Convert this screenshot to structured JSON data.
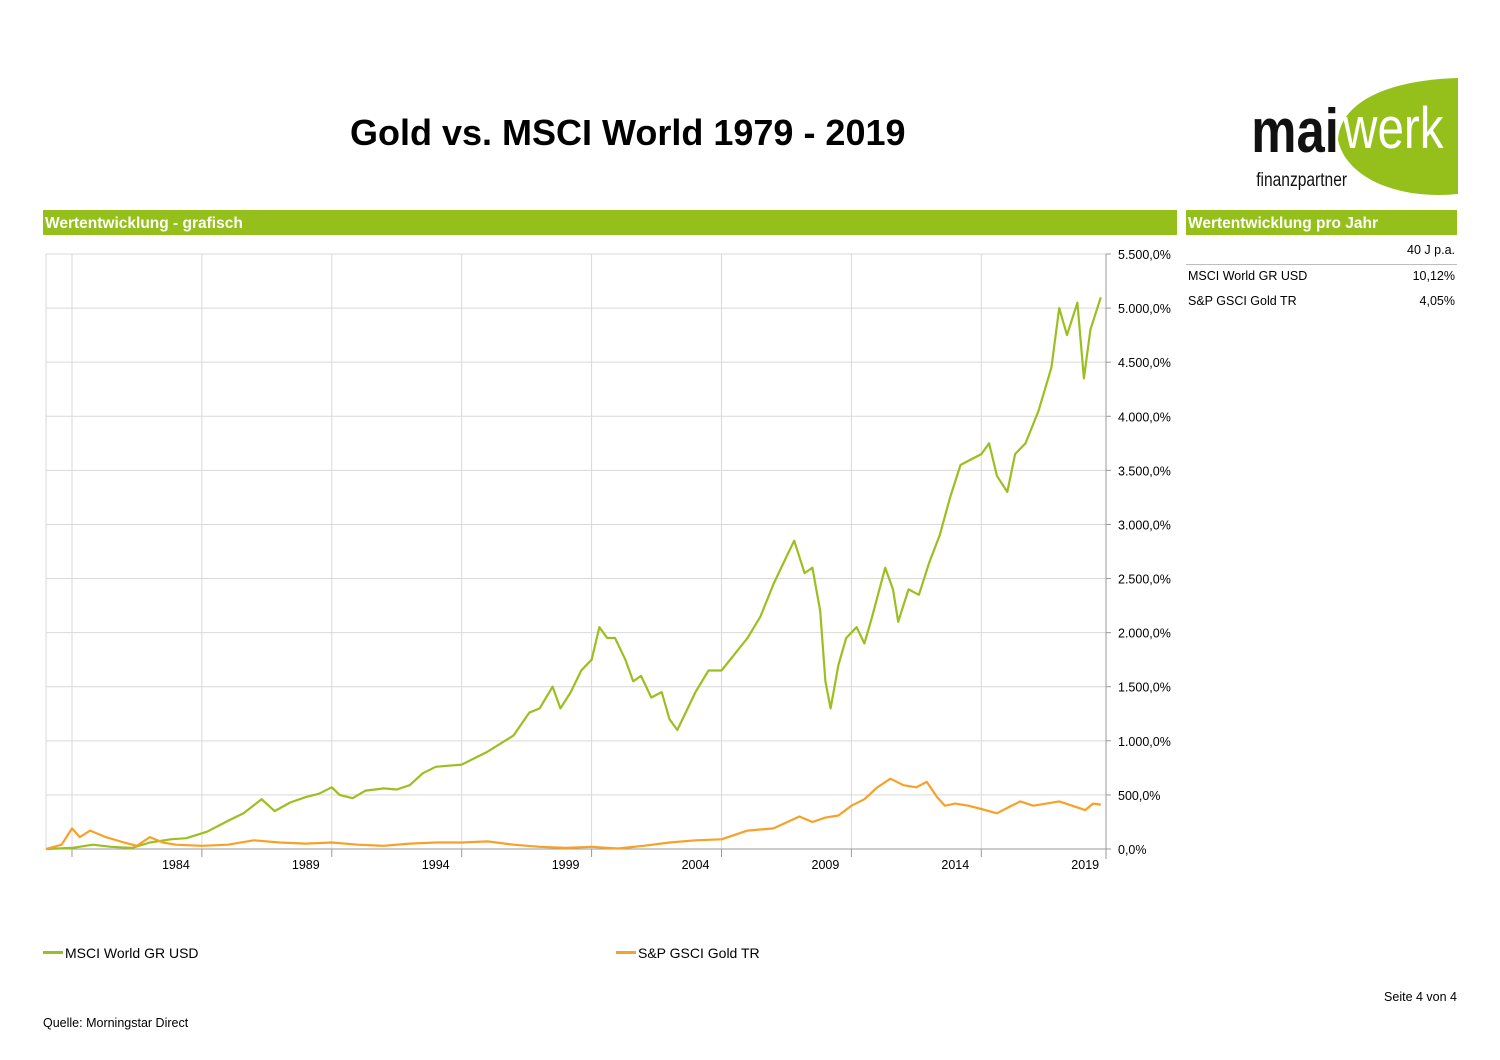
{
  "page": {
    "title": "Gold vs. MSCI World 1979 - 2019",
    "left_bar_label": "Wertentwicklung - grafisch",
    "right_bar_label": "Wertentwicklung pro Jahr",
    "source": "Quelle: Morningstar Direct",
    "page_number": "Seite 4 von 4"
  },
  "logo": {
    "mai": "mai",
    "werk": "werk",
    "tagline": "finanzpartner"
  },
  "performance_table": {
    "column_header": "40 J p.a.",
    "rows": [
      {
        "name": "MSCI World GR USD",
        "value": "10,12%"
      },
      {
        "name": "S&P GSCI Gold TR",
        "value": "4,05%"
      }
    ]
  },
  "colors": {
    "accent_green": "#95bf1a",
    "msci": "#9cbf20",
    "gold": "#f7a128",
    "grid": "#d9d9d9"
  },
  "chart_data": {
    "type": "line",
    "title": "",
    "xlabel": "",
    "ylabel": "",
    "xlim": [
      1979.0,
      2019.8
    ],
    "ylim": [
      0,
      5500
    ],
    "x_ticks": [
      1984,
      1989,
      1994,
      1999,
      2004,
      2009,
      2014,
      2019
    ],
    "y_tick_labels": [
      "0,0%",
      "500,0%",
      "1.000,0%",
      "1.500,0%",
      "2.000,0%",
      "2.500,0%",
      "3.000,0%",
      "3.500,0%",
      "4.000,0%",
      "4.500,0%",
      "5.000,0%",
      "5.500,0%"
    ],
    "y_ticks": [
      0,
      500,
      1000,
      1500,
      2000,
      2500,
      3000,
      3500,
      4000,
      4500,
      5000,
      5500
    ],
    "grid": true,
    "legend_position": "bottom",
    "series": [
      {
        "name": "MSCI World GR USD",
        "color": "#9cbf20",
        "points": [
          [
            1979.0,
            0
          ],
          [
            1980.0,
            10
          ],
          [
            1980.8,
            40
          ],
          [
            1981.5,
            20
          ],
          [
            1982.3,
            10
          ],
          [
            1983.0,
            60
          ],
          [
            1983.8,
            90
          ],
          [
            1984.4,
            100
          ],
          [
            1985.2,
            160
          ],
          [
            1986.0,
            260
          ],
          [
            1986.6,
            330
          ],
          [
            1987.3,
            460
          ],
          [
            1987.8,
            350
          ],
          [
            1988.4,
            430
          ],
          [
            1989.0,
            480
          ],
          [
            1989.5,
            510
          ],
          [
            1990.0,
            570
          ],
          [
            1990.3,
            500
          ],
          [
            1990.8,
            470
          ],
          [
            1991.3,
            540
          ],
          [
            1992.0,
            560
          ],
          [
            1992.5,
            550
          ],
          [
            1993.0,
            590
          ],
          [
            1993.5,
            700
          ],
          [
            1994.0,
            760
          ],
          [
            1994.5,
            770
          ],
          [
            1995.0,
            780
          ],
          [
            1996.0,
            900
          ],
          [
            1997.0,
            1050
          ],
          [
            1997.6,
            1260
          ],
          [
            1998.0,
            1300
          ],
          [
            1998.5,
            1500
          ],
          [
            1998.8,
            1300
          ],
          [
            1999.2,
            1450
          ],
          [
            1999.6,
            1650
          ],
          [
            2000.0,
            1750
          ],
          [
            2000.3,
            2050
          ],
          [
            2000.6,
            1950
          ],
          [
            2000.9,
            1950
          ],
          [
            2001.3,
            1750
          ],
          [
            2001.6,
            1550
          ],
          [
            2001.9,
            1600
          ],
          [
            2002.3,
            1400
          ],
          [
            2002.7,
            1450
          ],
          [
            2003.0,
            1200
          ],
          [
            2003.3,
            1100
          ],
          [
            2003.7,
            1300
          ],
          [
            2004.0,
            1450
          ],
          [
            2004.5,
            1650
          ],
          [
            2005.0,
            1650
          ],
          [
            2005.5,
            1800
          ],
          [
            2006.0,
            1950
          ],
          [
            2006.5,
            2150
          ],
          [
            2007.0,
            2450
          ],
          [
            2007.5,
            2700
          ],
          [
            2007.8,
            2850
          ],
          [
            2008.2,
            2550
          ],
          [
            2008.5,
            2600
          ],
          [
            2008.8,
            2200
          ],
          [
            2009.0,
            1550
          ],
          [
            2009.2,
            1300
          ],
          [
            2009.5,
            1700
          ],
          [
            2009.8,
            1950
          ],
          [
            2010.2,
            2050
          ],
          [
            2010.5,
            1900
          ],
          [
            2010.8,
            2150
          ],
          [
            2011.3,
            2600
          ],
          [
            2011.6,
            2400
          ],
          [
            2011.8,
            2100
          ],
          [
            2012.2,
            2400
          ],
          [
            2012.6,
            2350
          ],
          [
            2013.0,
            2650
          ],
          [
            2013.4,
            2900
          ],
          [
            2013.8,
            3250
          ],
          [
            2014.2,
            3550
          ],
          [
            2014.6,
            3600
          ],
          [
            2015.0,
            3650
          ],
          [
            2015.3,
            3750
          ],
          [
            2015.6,
            3450
          ],
          [
            2016.0,
            3300
          ],
          [
            2016.3,
            3650
          ],
          [
            2016.7,
            3750
          ],
          [
            2017.2,
            4050
          ],
          [
            2017.7,
            4450
          ],
          [
            2018.0,
            5000
          ],
          [
            2018.3,
            4750
          ],
          [
            2018.7,
            5050
          ],
          [
            2018.95,
            4350
          ],
          [
            2019.2,
            4800
          ],
          [
            2019.6,
            5100
          ]
        ]
      },
      {
        "name": "S&P GSCI Gold TR",
        "color": "#f7a128",
        "points": [
          [
            1979.0,
            0
          ],
          [
            1979.6,
            40
          ],
          [
            1980.0,
            190
          ],
          [
            1980.3,
            110
          ],
          [
            1980.7,
            170
          ],
          [
            1981.3,
            110
          ],
          [
            1982.0,
            60
          ],
          [
            1982.5,
            30
          ],
          [
            1983.0,
            110
          ],
          [
            1983.5,
            60
          ],
          [
            1984.0,
            40
          ],
          [
            1985.0,
            30
          ],
          [
            1986.0,
            40
          ],
          [
            1987.0,
            80
          ],
          [
            1988.0,
            60
          ],
          [
            1989.0,
            50
          ],
          [
            1990.0,
            60
          ],
          [
            1991.0,
            40
          ],
          [
            1992.0,
            30
          ],
          [
            1993.0,
            50
          ],
          [
            1994.0,
            60
          ],
          [
            1995.0,
            60
          ],
          [
            1996.0,
            70
          ],
          [
            1997.0,
            40
          ],
          [
            1998.0,
            20
          ],
          [
            1999.0,
            10
          ],
          [
            2000.0,
            20
          ],
          [
            2001.0,
            5
          ],
          [
            2002.0,
            30
          ],
          [
            2003.0,
            60
          ],
          [
            2004.0,
            80
          ],
          [
            2005.0,
            90
          ],
          [
            2006.0,
            170
          ],
          [
            2007.0,
            190
          ],
          [
            2008.0,
            300
          ],
          [
            2008.5,
            250
          ],
          [
            2009.0,
            290
          ],
          [
            2009.5,
            310
          ],
          [
            2010.0,
            400
          ],
          [
            2010.5,
            460
          ],
          [
            2011.0,
            570
          ],
          [
            2011.5,
            650
          ],
          [
            2012.0,
            590
          ],
          [
            2012.5,
            570
          ],
          [
            2012.9,
            620
          ],
          [
            2013.3,
            480
          ],
          [
            2013.6,
            400
          ],
          [
            2014.0,
            420
          ],
          [
            2014.5,
            400
          ],
          [
            2015.0,
            370
          ],
          [
            2015.6,
            330
          ],
          [
            2016.0,
            380
          ],
          [
            2016.5,
            440
          ],
          [
            2017.0,
            400
          ],
          [
            2017.5,
            420
          ],
          [
            2018.0,
            440
          ],
          [
            2018.5,
            400
          ],
          [
            2019.0,
            360
          ],
          [
            2019.3,
            420
          ],
          [
            2019.6,
            410
          ]
        ]
      }
    ]
  }
}
